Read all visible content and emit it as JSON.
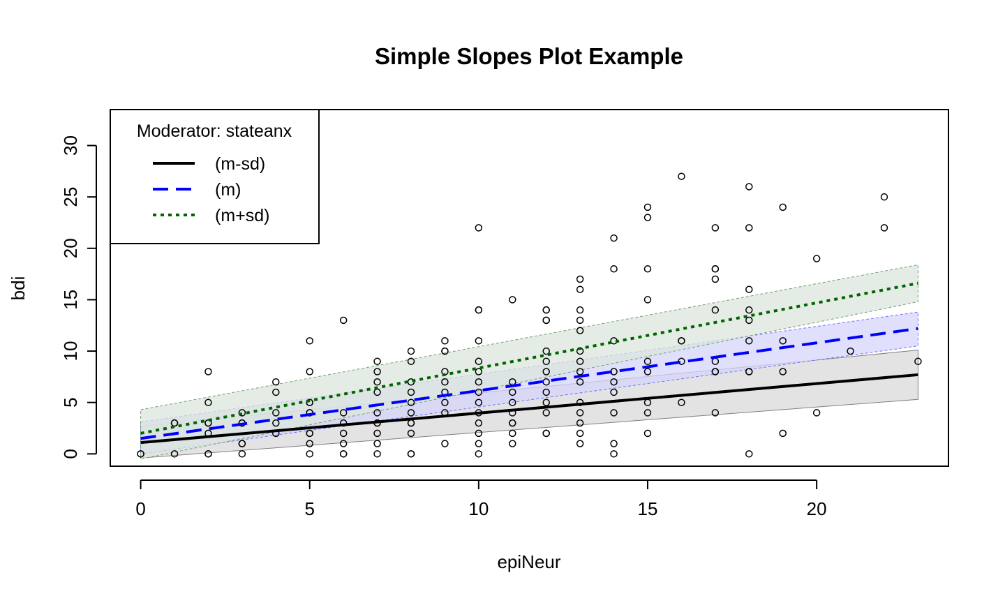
{
  "chart_data": {
    "type": "scatter",
    "title": "Simple Slopes Plot Example",
    "xlabel": "epiNeur",
    "ylabel": "bdi",
    "xlim": [
      -0.9,
      23.9
    ],
    "ylim": [
      -1.2,
      33.5
    ],
    "xticks": [
      0,
      5,
      10,
      15,
      20
    ],
    "yticks": [
      0,
      5,
      10,
      15,
      20,
      25,
      30
    ],
    "grid": false,
    "legend": {
      "title": "Moderator: stateanx",
      "placement": "top-left",
      "entries": [
        {
          "label": "(m-sd)",
          "color": "#000000",
          "dash": "solid"
        },
        {
          "label": "(m)",
          "color": "#0000ff",
          "dash": "dashed"
        },
        {
          "label": "(m+sd)",
          "color": "#006400",
          "dash": "dotted"
        }
      ]
    },
    "lines": [
      {
        "name": "(m-sd)",
        "color": "#000000",
        "dash": "solid",
        "band_fill": "#d9d9d9",
        "band_stroke": "#808080",
        "x": [
          0,
          23
        ],
        "y": [
          1.1,
          7.7
        ],
        "lower": [
          -0.4,
          5.3
        ],
        "upper": [
          2.7,
          10.1
        ]
      },
      {
        "name": "(m)",
        "color": "#0000ff",
        "dash": "dashed",
        "band_fill": "#d6d6fb",
        "band_stroke": "#7070ff",
        "x": [
          0,
          23
        ],
        "y": [
          1.5,
          12.2
        ],
        "lower": [
          0.0,
          10.5
        ],
        "upper": [
          3.1,
          13.8
        ]
      },
      {
        "name": "(m+sd)",
        "color": "#006400",
        "dash": "dotted",
        "band_fill": "#dce6dc",
        "band_stroke": "#6f9f6f",
        "x": [
          0,
          23
        ],
        "y": [
          2.0,
          16.6
        ],
        "lower": [
          -0.5,
          14.8
        ],
        "upper": [
          4.3,
          18.4
        ]
      }
    ],
    "points": [
      [
        0,
        0
      ],
      [
        0,
        0
      ],
      [
        1,
        0
      ],
      [
        1,
        3
      ],
      [
        1,
        3
      ],
      [
        2,
        0
      ],
      [
        2,
        0
      ],
      [
        2,
        2
      ],
      [
        2,
        3
      ],
      [
        2,
        3
      ],
      [
        2,
        5
      ],
      [
        2,
        8
      ],
      [
        3,
        0
      ],
      [
        3,
        1
      ],
      [
        3,
        1
      ],
      [
        3,
        3
      ],
      [
        3,
        3
      ],
      [
        3,
        4
      ],
      [
        4,
        2
      ],
      [
        4,
        3
      ],
      [
        4,
        4
      ],
      [
        4,
        6
      ],
      [
        4,
        7
      ],
      [
        5,
        0
      ],
      [
        5,
        1
      ],
      [
        5,
        2
      ],
      [
        5,
        2
      ],
      [
        5,
        4
      ],
      [
        5,
        4
      ],
      [
        5,
        5
      ],
      [
        5,
        5
      ],
      [
        5,
        8
      ],
      [
        5,
        11
      ],
      [
        6,
        0
      ],
      [
        6,
        0
      ],
      [
        6,
        1
      ],
      [
        6,
        2
      ],
      [
        6,
        3
      ],
      [
        6,
        4
      ],
      [
        6,
        13
      ],
      [
        7,
        0
      ],
      [
        7,
        1
      ],
      [
        7,
        2
      ],
      [
        7,
        3
      ],
      [
        7,
        3
      ],
      [
        7,
        4
      ],
      [
        7,
        6
      ],
      [
        7,
        7
      ],
      [
        7,
        8
      ],
      [
        7,
        9
      ],
      [
        8,
        0
      ],
      [
        8,
        0
      ],
      [
        8,
        2
      ],
      [
        8,
        3
      ],
      [
        8,
        3
      ],
      [
        8,
        4
      ],
      [
        8,
        5
      ],
      [
        8,
        6
      ],
      [
        8,
        7
      ],
      [
        8,
        9
      ],
      [
        8,
        10
      ],
      [
        9,
        1
      ],
      [
        9,
        4
      ],
      [
        9,
        5
      ],
      [
        9,
        6
      ],
      [
        9,
        7
      ],
      [
        9,
        8
      ],
      [
        9,
        10
      ],
      [
        9,
        10
      ],
      [
        9,
        11
      ],
      [
        10,
        0
      ],
      [
        10,
        1
      ],
      [
        10,
        2
      ],
      [
        10,
        3
      ],
      [
        10,
        4
      ],
      [
        10,
        5
      ],
      [
        10,
        6
      ],
      [
        10,
        7
      ],
      [
        10,
        8
      ],
      [
        10,
        9
      ],
      [
        10,
        11
      ],
      [
        10,
        14
      ],
      [
        10,
        14
      ],
      [
        10,
        22
      ],
      [
        11,
        1
      ],
      [
        11,
        2
      ],
      [
        11,
        3
      ],
      [
        11,
        3
      ],
      [
        11,
        4
      ],
      [
        11,
        5
      ],
      [
        11,
        6
      ],
      [
        11,
        7
      ],
      [
        11,
        15
      ],
      [
        12,
        2
      ],
      [
        12,
        2
      ],
      [
        12,
        4
      ],
      [
        12,
        5
      ],
      [
        12,
        6
      ],
      [
        12,
        7
      ],
      [
        12,
        8
      ],
      [
        12,
        9
      ],
      [
        12,
        10
      ],
      [
        12,
        13
      ],
      [
        12,
        13
      ],
      [
        12,
        14
      ],
      [
        12,
        14
      ],
      [
        13,
        1
      ],
      [
        13,
        2
      ],
      [
        13,
        3
      ],
      [
        13,
        4
      ],
      [
        13,
        5
      ],
      [
        13,
        7
      ],
      [
        13,
        8
      ],
      [
        13,
        9
      ],
      [
        13,
        10
      ],
      [
        13,
        12
      ],
      [
        13,
        13
      ],
      [
        13,
        14
      ],
      [
        13,
        16
      ],
      [
        13,
        17
      ],
      [
        14,
        0
      ],
      [
        14,
        1
      ],
      [
        14,
        4
      ],
      [
        14,
        6
      ],
      [
        14,
        7
      ],
      [
        14,
        8
      ],
      [
        14,
        11
      ],
      [
        14,
        18
      ],
      [
        14,
        21
      ],
      [
        15,
        2
      ],
      [
        15,
        4
      ],
      [
        15,
        5
      ],
      [
        15,
        8
      ],
      [
        15,
        9
      ],
      [
        15,
        15
      ],
      [
        15,
        18
      ],
      [
        15,
        23
      ],
      [
        15,
        24
      ],
      [
        16,
        5
      ],
      [
        16,
        9
      ],
      [
        16,
        11
      ],
      [
        16,
        11
      ],
      [
        16,
        27
      ],
      [
        17,
        4
      ],
      [
        17,
        8
      ],
      [
        17,
        8
      ],
      [
        17,
        9
      ],
      [
        17,
        14
      ],
      [
        17,
        17
      ],
      [
        17,
        18
      ],
      [
        17,
        18
      ],
      [
        17,
        22
      ],
      [
        18,
        0
      ],
      [
        18,
        8
      ],
      [
        18,
        8
      ],
      [
        18,
        11
      ],
      [
        18,
        13
      ],
      [
        18,
        14
      ],
      [
        18,
        16
      ],
      [
        18,
        22
      ],
      [
        18,
        26
      ],
      [
        19,
        2
      ],
      [
        19,
        8
      ],
      [
        19,
        11
      ],
      [
        19,
        24
      ],
      [
        20,
        4
      ],
      [
        20,
        19
      ],
      [
        21,
        10
      ],
      [
        22,
        22
      ],
      [
        22,
        25
      ],
      [
        23,
        9
      ]
    ]
  }
}
